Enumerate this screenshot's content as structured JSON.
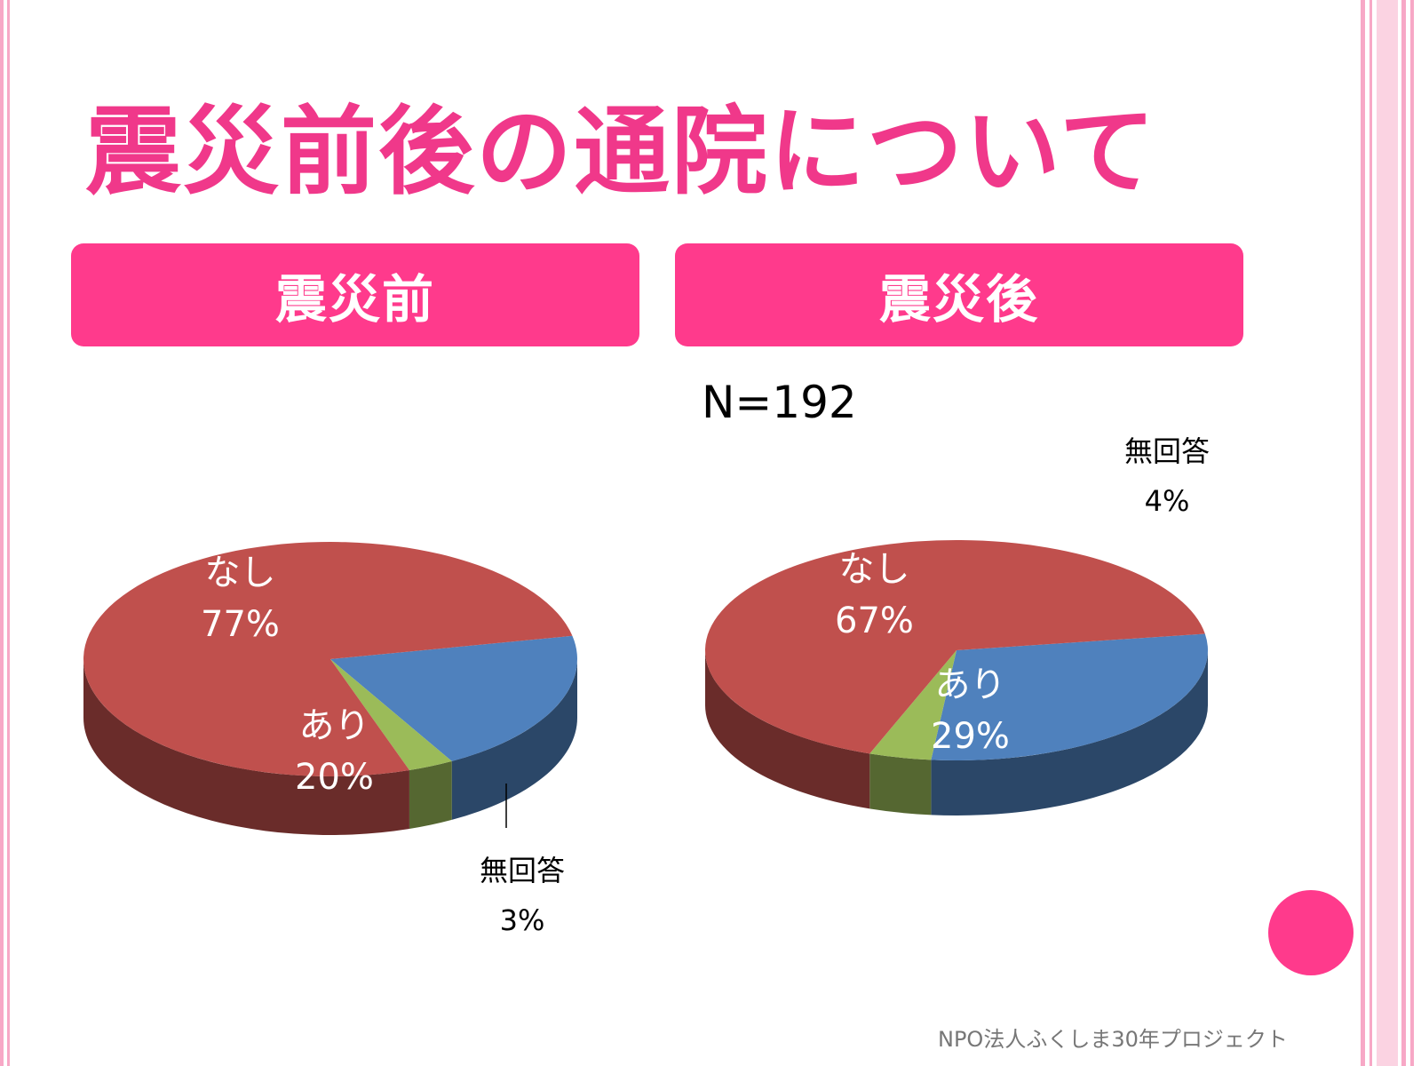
{
  "slide": {
    "title": "震災前後の通院について",
    "n_label": "N=192",
    "footer": "NPO法人ふくしま30年プロジェクト"
  },
  "colors": {
    "accent": "#ff3a8c",
    "title": "#f0388a",
    "none": "#c0504d",
    "yes": "#4f81bd",
    "no_answer": "#9bbb59"
  },
  "chart_data": [
    {
      "type": "pie",
      "title": "震災前",
      "categories": [
        "なし",
        "あり",
        "無回答"
      ],
      "values": [
        77,
        20,
        3
      ],
      "labels": [
        {
          "name": "なし",
          "pct": "77%"
        },
        {
          "name": "あり",
          "pct": "20%"
        },
        {
          "name": "無回答",
          "pct": "3%"
        }
      ]
    },
    {
      "type": "pie",
      "title": "震災後",
      "categories": [
        "なし",
        "あり",
        "無回答"
      ],
      "values": [
        67,
        29,
        4
      ],
      "labels": [
        {
          "name": "なし",
          "pct": "67%"
        },
        {
          "name": "あり",
          "pct": "29%"
        },
        {
          "name": "無回答",
          "pct": "4%"
        }
      ]
    }
  ]
}
